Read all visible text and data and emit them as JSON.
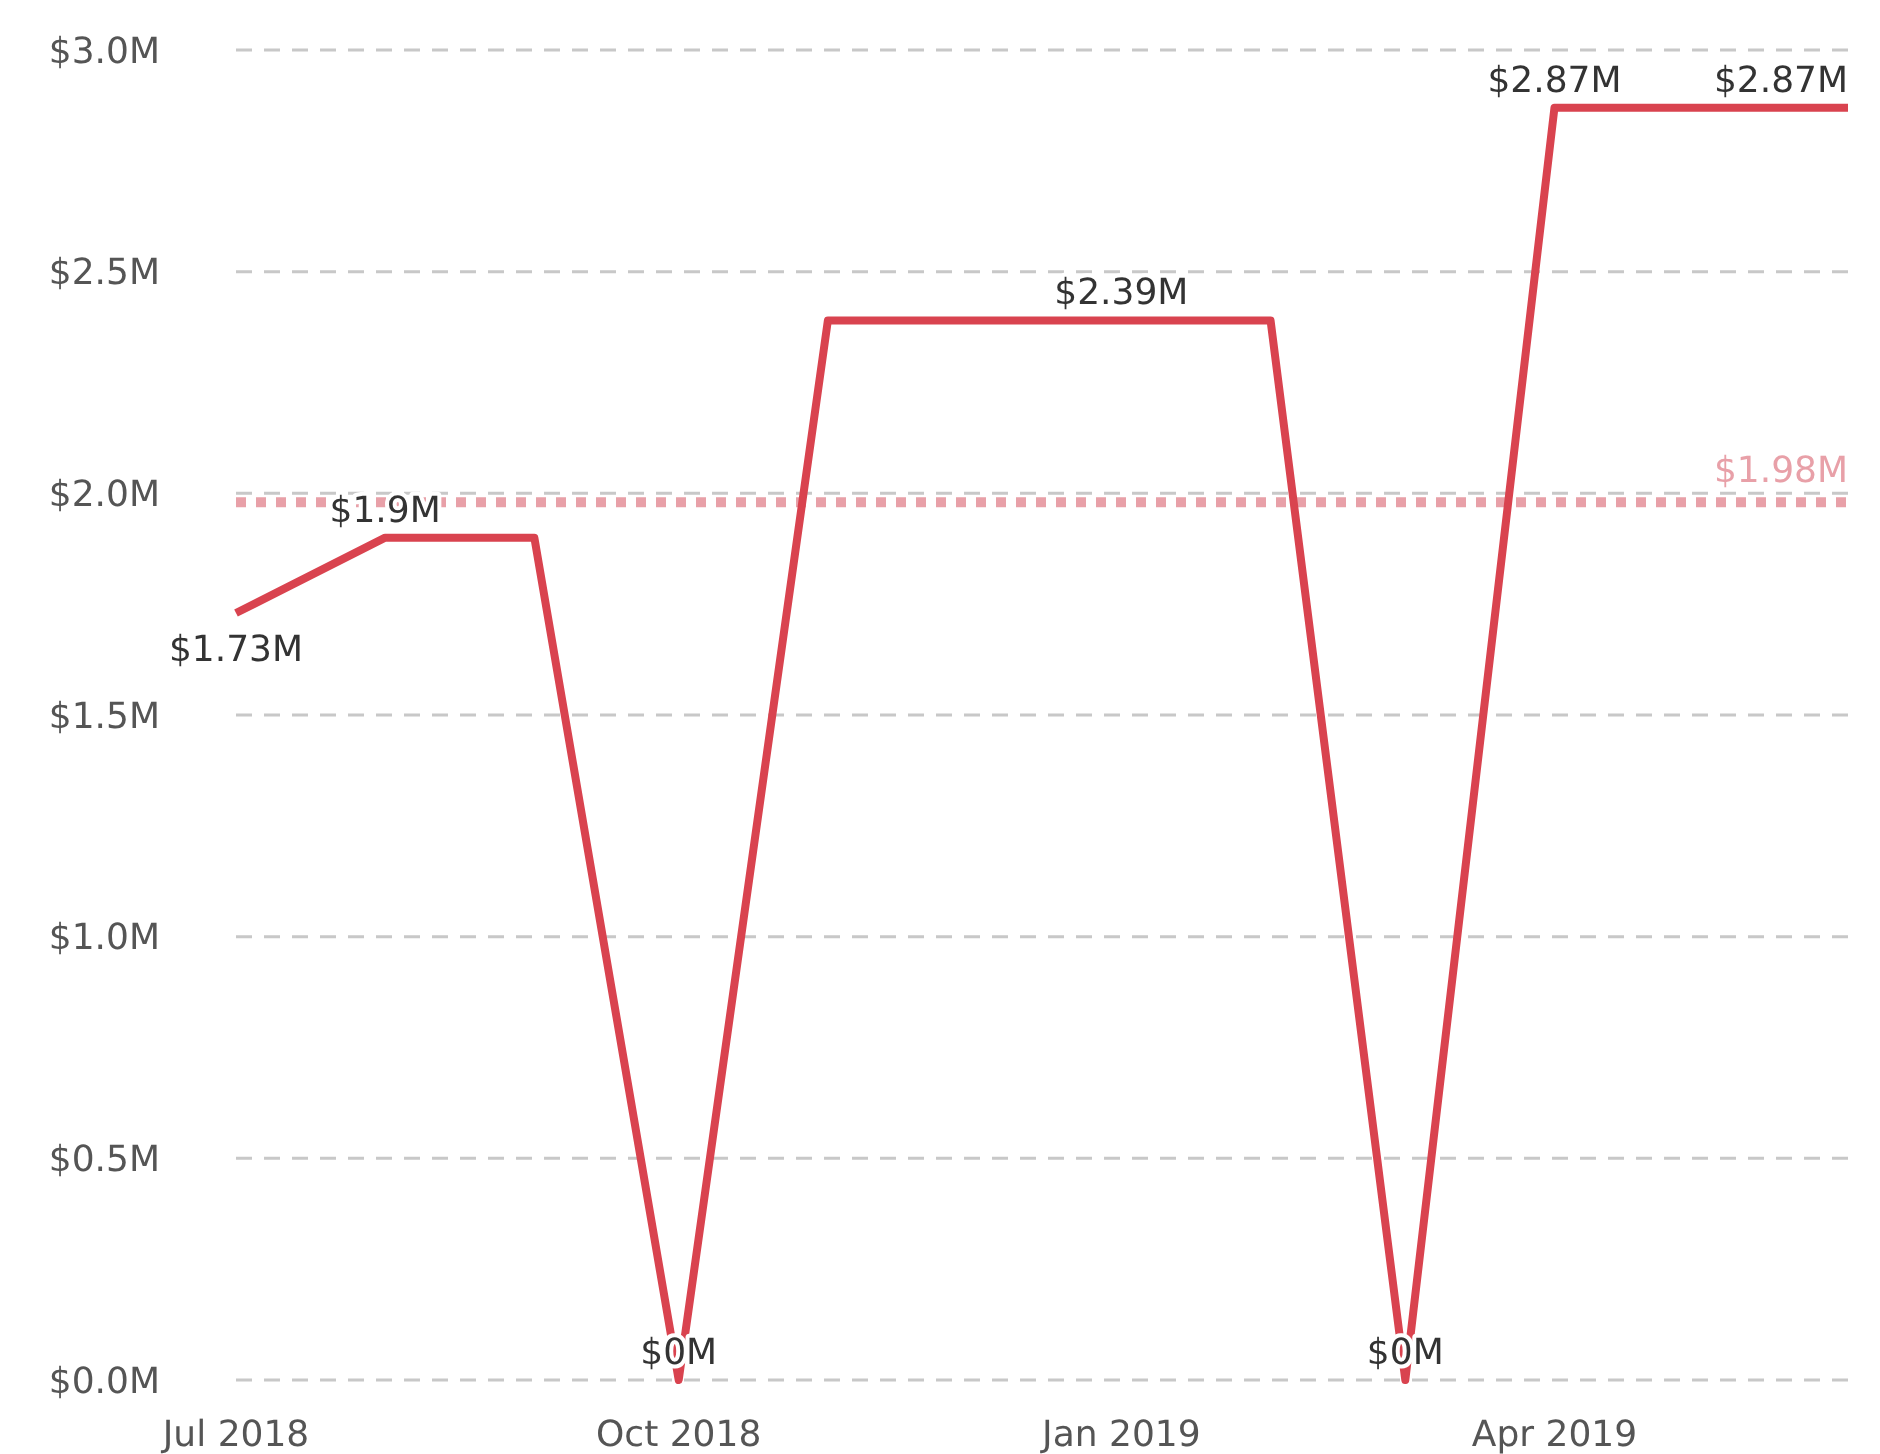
{
  "chart_data": {
    "type": "line",
    "x": [
      "2018-07",
      "2018-08",
      "2018-09",
      "2018-10",
      "2018-11",
      "2018-12",
      "2019-01",
      "2019-02",
      "2019-03",
      "2019-04",
      "2019-05",
      "2019-06"
    ],
    "series": [
      {
        "color": "#d9434f",
        "values": [
          1.73,
          1.9,
          1.9,
          0,
          2.39,
          2.39,
          2.39,
          2.39,
          0,
          2.87,
          2.87,
          2.87
        ],
        "value_labels": [
          "$1.73M",
          "$1.9M",
          null,
          "$0M",
          null,
          null,
          "$2.39M",
          null,
          "$0M",
          "$2.87M",
          null,
          "$2.87M"
        ]
      }
    ],
    "xlim": [
      "2018-07",
      "2019-06"
    ],
    "xticks": [
      {
        "value": "2018-07",
        "label": "Jul 2018"
      },
      {
        "value": "2018-10",
        "label": "Oct 2018"
      },
      {
        "value": "2019-01",
        "label": "Jan 2019"
      },
      {
        "value": "2019-04",
        "label": "Apr 2019"
      }
    ],
    "ylim": [
      0,
      3
    ],
    "yticks": [
      {
        "value": 0,
        "label": "$0.0M"
      },
      {
        "value": 0.5,
        "label": "$0.5M"
      },
      {
        "value": 1,
        "label": "$1.0M"
      },
      {
        "value": 1.5,
        "label": "$1.5M"
      },
      {
        "value": 2,
        "label": "$2.0M"
      },
      {
        "value": 2.5,
        "label": "$2.5M"
      },
      {
        "value": 3,
        "label": "$3.0M"
      }
    ],
    "grid": "y",
    "marker": "none",
    "line_style": "solid",
    "ref_lines": [
      {
        "axis": "y",
        "value": 1.98,
        "label": "$1.98M",
        "color": "#e8a0a8",
        "line_style": "dotted"
      }
    ]
  }
}
